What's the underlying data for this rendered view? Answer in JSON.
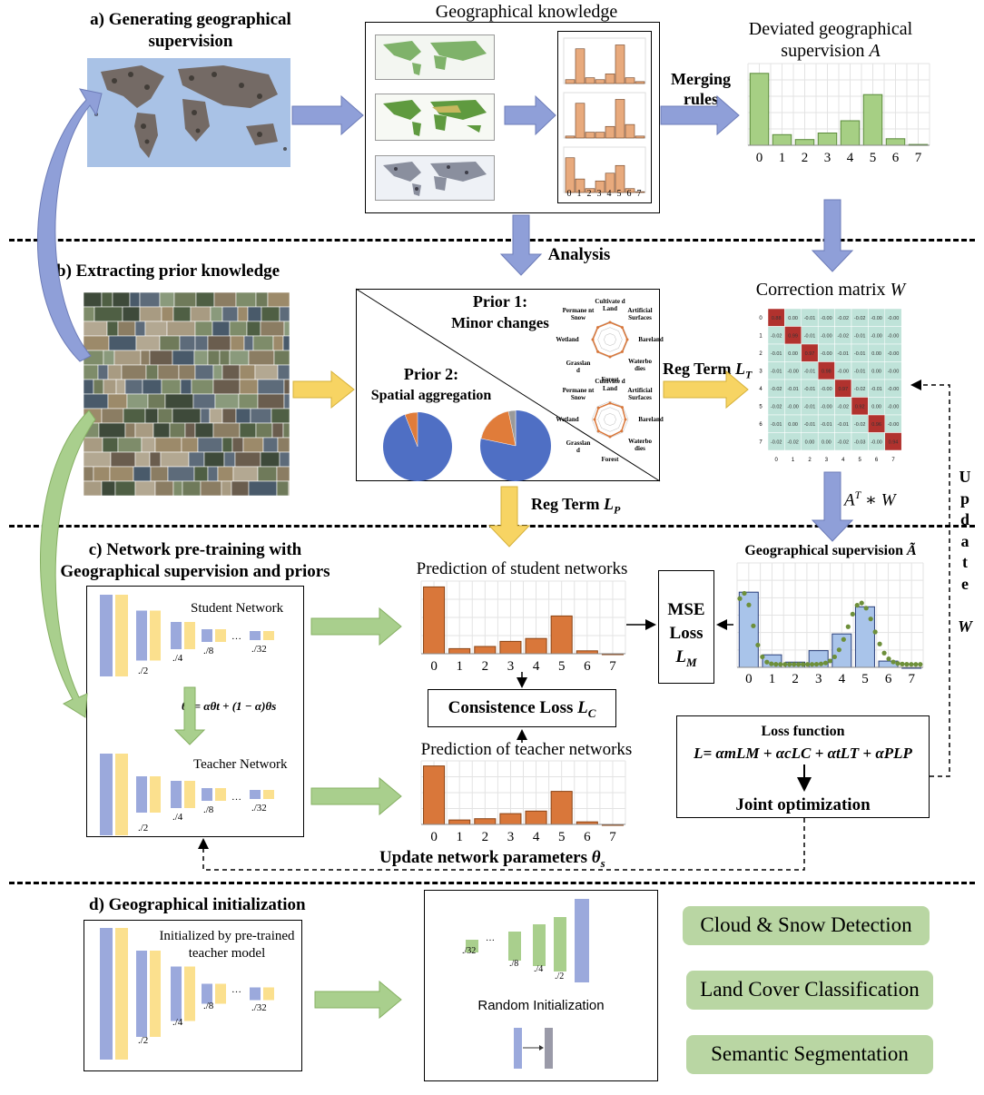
{
  "section_a": {
    "title_line1": "a) Generating geographical",
    "title_line2": "supervision",
    "knowledge_title": "Geographical knowledge",
    "merging_line1": "Merging",
    "merging_line2": "rules",
    "deviated_line1": "Deviated geographical",
    "deviated_line2": "supervision",
    "deviated_var": "A",
    "small_ticks": [
      "0",
      "1",
      "2",
      "3",
      "4",
      "5",
      "6",
      "7"
    ],
    "ticks": [
      "0",
      "1",
      "2",
      "3",
      "4",
      "5",
      "6",
      "7"
    ]
  },
  "analysis_label": "Analysis",
  "section_b": {
    "title": "b) Extracting prior knowledge",
    "prior1_line1": "Prior 1:",
    "prior1_line2": "Minor changes",
    "prior2_line1": "Prior 2:",
    "prior2_line2": "Spatial aggregation",
    "radar_labels": [
      "Cultivate d Land",
      "Artificial Surfaces",
      "Bareland",
      "Waterbo dies",
      "Forest",
      "Grasslan d",
      "Wetland",
      "Permane nt Snow"
    ],
    "reg_term_lt": "Reg Term",
    "lt_sub": "T",
    "reg_term_lp": "Reg Term",
    "lp_sub": "P",
    "correction_title": "Correction matrix",
    "correction_var": "W",
    "matrix_axis": [
      "0",
      "1",
      "2",
      "3",
      "4",
      "5",
      "6",
      "7"
    ],
    "matrix": [
      [
        "0.88",
        "0.00",
        "-0.01",
        "-0.00",
        "-0.02",
        "-0.02",
        "-0.00",
        "-0.00"
      ],
      [
        "-0.02",
        "0.99",
        "-0.01",
        "-0.00",
        "-0.02",
        "-0.01",
        "-0.00",
        "-0.00"
      ],
      [
        "-0.01",
        "0.00",
        "0.97",
        "-0.00",
        "-0.01",
        "-0.01",
        "0.00",
        "-0.00"
      ],
      [
        "-0.01",
        "-0.00",
        "-0.01",
        "0.98",
        "-0.00",
        "-0.01",
        "0.00",
        "-0.00"
      ],
      [
        "-0.02",
        "-0.01",
        "-0.01",
        "-0.00",
        "0.97",
        "-0.02",
        "-0.01",
        "-0.00"
      ],
      [
        "-0.02",
        "-0.00",
        "-0.01",
        "-0.00",
        "-0.02",
        "0.92",
        "0.00",
        "-0.00"
      ],
      [
        "-0.01",
        "0.00",
        "-0.01",
        "-0.01",
        "-0.01",
        "-0.02",
        "0.96",
        "-0.00"
      ],
      [
        "-0.02",
        "-0.02",
        "0.00",
        "0.00",
        "-0.02",
        "-0.03",
        "-0.00",
        "0.94"
      ]
    ],
    "atw": "A",
    "atw_sup": "T",
    "atw_rest": " ∗ W",
    "update_letters": [
      "U",
      "p",
      "d",
      "a",
      "t",
      "e"
    ],
    "update_w": "W"
  },
  "section_c": {
    "title_line1": "c) Network pre-training with",
    "title_line2": "Geographical supervision and priors",
    "student_label": "Student Network",
    "teacher_label": "Teacher Network",
    "scales": [
      "./2",
      "./4",
      "./8",
      "…",
      "./32"
    ],
    "ema_formula": "θt = αθt + (1 − α)θs",
    "pred_student": "Prediction of student networks",
    "pred_teacher": "Prediction of teacher networks",
    "mse_line1": "MSE",
    "mse_line2": "Loss",
    "mse_var": "L",
    "mse_sub": "M",
    "consistence": "Consistence  Loss",
    "consistence_var": "L",
    "consistence_sub": "C",
    "geo_sup_title": "Geographical supervision",
    "geo_sup_var": "Ã",
    "loss_function_title": "Loss function",
    "loss_formula": "L= αmLM + αcLC + αtLT + αPLP",
    "joint_opt": "Joint optimization",
    "update_params": "Update network parameters",
    "update_params_var": "θ",
    "update_params_sub": "s",
    "ticks": [
      "0",
      "1",
      "2",
      "3",
      "4",
      "5",
      "6",
      "7"
    ]
  },
  "section_d": {
    "title": "d) Geographical initialization",
    "init_line1": "Initialized by pre-trained",
    "init_line2": "teacher model",
    "random_init": "Random Initialization",
    "scales": [
      "./2",
      "./4",
      "./8",
      "…",
      "./32"
    ],
    "tasks": [
      "Cloud & Snow Detection",
      "Land Cover Classification",
      "Semantic Segmentation"
    ]
  },
  "colors": {
    "blue_net": "#9ba9dc",
    "yellow_net": "#fbe08e",
    "green_net": "#a9cf8d",
    "orange_bar": "#d9773a",
    "green_bar": "#a6cf84",
    "light_blue_bar": "#a9c4ea",
    "arrow_blue": "#8f9fd8",
    "arrow_green": "#a9cf8d",
    "arrow_yellow": "#f7d463",
    "task_pill": "#b9d6a3",
    "matrix_bg": "#bfe3d9",
    "matrix_diag": "#b1322e"
  },
  "chart_data": [
    {
      "type": "bar",
      "title": "Deviated geographical supervision A",
      "categories": [
        "0",
        "1",
        "2",
        "3",
        "4",
        "5",
        "6",
        "7"
      ],
      "values": [
        0.88,
        0.13,
        0.07,
        0.15,
        0.3,
        0.62,
        0.08,
        0.01
      ],
      "ylim": [
        0,
        1
      ]
    },
    {
      "type": "bar",
      "title": "Prediction of student networks",
      "categories": [
        "0",
        "1",
        "2",
        "3",
        "4",
        "5",
        "6",
        "7"
      ],
      "values": [
        0.92,
        0.07,
        0.1,
        0.17,
        0.21,
        0.52,
        0.04,
        0.0
      ],
      "ylim": [
        0,
        1
      ]
    },
    {
      "type": "bar",
      "title": "Prediction of teacher networks",
      "categories": [
        "0",
        "1",
        "2",
        "3",
        "4",
        "5",
        "6",
        "7"
      ],
      "values": [
        0.92,
        0.07,
        0.09,
        0.17,
        0.21,
        0.52,
        0.04,
        0.0
      ],
      "ylim": [
        0,
        1
      ]
    },
    {
      "type": "bar",
      "title": "Geographical supervision Ã",
      "categories": [
        "0",
        "1",
        "2",
        "3",
        "4",
        "5",
        "6",
        "7"
      ],
      "values": [
        0.72,
        0.12,
        0.05,
        0.16,
        0.32,
        0.58,
        0.06,
        0.0
      ],
      "ylim": [
        0,
        1
      ]
    }
  ]
}
